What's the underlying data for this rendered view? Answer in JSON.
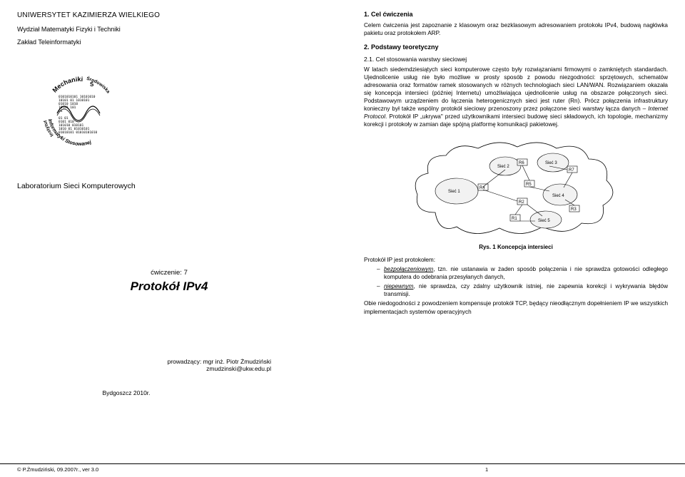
{
  "left": {
    "university": "UNIWERSYTET KAZIMIERZA WIELKIEGO",
    "faculty": "Wydział Matematyki Fizyki i Techniki",
    "department": "Zakład Teleinformatyki",
    "institute_logo_text_top": "Mechaniki",
    "institute_logo_text_bottom": "Informatyki Stosowanej",
    "institute_logo_text_left": "Instytut",
    "institute_logo_text_right": "Środowiska",
    "lab_title": "Laboratorium Sieci Komputerowych",
    "exercise_label": "ćwiczenie: 7",
    "exercise_title": "Protokół IPv4",
    "instructor_line1": "prowadzący: mgr inż. Piotr Żmudziński",
    "instructor_line2": "zmudzinski@ukw.edu.pl",
    "city_year": "Bydgoszcz 2010r."
  },
  "right": {
    "sec1_title": "1. Cel ćwiczenia",
    "sec1_body": "Celem ćwiczenia jest zapoznanie z klasowym oraz bezklasowym adresowaniem protokołu IPv4, budową nagłówka pakietu oraz protokołem ARP.",
    "sec2_title": "2. Podstawy teoretyczny",
    "sec2_sub_title": "2.1. Cel stosowania warstwy sieciowej",
    "sec2_body": "W latach siedemdziesiątych sieci komputerowe często były rozwiązaniami firmowymi o zamkniętych standardach. Ujednolicenie usług nie było możliwe w prosty sposób z powodu niezgodności: sprzętowych, schematów adresowania oraz formatów ramek stosowanych w różnych technologiach sieci LAN/WAN. Rozwiązaniem okazała się koncepcja intersieci (później Internetu) umożliwiająca ujednolicenie usług na obszarze połączonych sieci. Podstawowym urządzeniem do łączenia heterogenicznych sieci jest ruter (Rn). Prócz połączenia infrastruktury konieczny był także wspólny protokół sieciowy przenoszony przez połączone sieci warstwy łącza danych – Internet Protocol. Protokół IP „ukrywa\" przed użytkownikami intersieci budowę sieci składowych, ich topologie, mechanizmy korekcji i protokoły w zamian daje spójną platformę komunikacji pakietowej.",
    "fig1_caption": "Rys. 1 Koncepcja intersieci",
    "list_intro": "Protokół IP jest protokołem:",
    "bullet1_emph": "bezpołączeniowym",
    "bullet1_rest": ", tzn. nie ustanawia w żaden sposób połączenia i nie sprawdza gotowości odległego komputera do odebrania przesyłanych danych,",
    "bullet2_emph": "niepewnym",
    "bullet2_rest": ", nie sprawdza, czy zdalny użytkownik istniej, nie zapewnia korekcji i wykrywania błędów transmisji.",
    "closing": "Obie niedogodności z powodzeniem kompensuje protokół TCP, będący nieodłącznym dopełnieniem IP we wszystkich implementacjach systemów operacyjnych",
    "diagram": {
      "nets": [
        "Sieć 1",
        "Sieć 2",
        "Sieć 3",
        "Sieć 4",
        "Sieć 5"
      ],
      "routers": [
        "R1",
        "R2",
        "R3",
        "R4",
        "R5",
        "R6",
        "R7"
      ],
      "cloud_stroke": "#000000",
      "cloud_fill": "#ffffff",
      "inner_fill": "#f2f2f2",
      "line_color": "#000000",
      "font_size": 6
    }
  },
  "inst_logo": {
    "ring_color": "#000000",
    "wave_color": "#000000",
    "bits_color": "#000000",
    "bg": "#ffffff"
  },
  "footer": {
    "left": "© P.Żmudziński, 09.2007r., ver 3.0",
    "page": "1"
  }
}
